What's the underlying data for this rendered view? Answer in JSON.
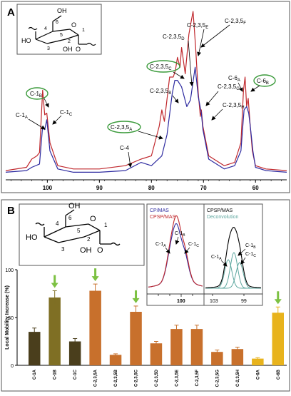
{
  "panel_a": {
    "letter": "A",
    "ring_labels": [
      "OH",
      "6",
      "5",
      "4",
      "HO",
      "3",
      "2",
      "OH",
      "1",
      "O",
      "O"
    ],
    "annotations": [
      {
        "text": "C-2,3,5",
        "sub": "E",
        "circled": false
      },
      {
        "text": "C-2,3,5",
        "sub": "F",
        "circled": false
      },
      {
        "text": "C-2,3,5",
        "sub": "D",
        "circled": false
      },
      {
        "text": "C-2,3,5",
        "sub": "C",
        "circled": true
      },
      {
        "text": "C-2,3,5",
        "sub": "B",
        "circled": false
      },
      {
        "text": "C-2,3,5",
        "sub": "G",
        "circled": false
      },
      {
        "text": "C-2,3,5",
        "sub": "H",
        "circled": false
      },
      {
        "text": "C-2,3,5",
        "sub": "A",
        "circled": true
      },
      {
        "text": "C-1",
        "sub": "B",
        "circled": true
      },
      {
        "text": "C-1",
        "sub": "A",
        "circled": false
      },
      {
        "text": "C-1",
        "sub": "C",
        "circled": false
      },
      {
        "text": "C-4",
        "sub": "",
        "circled": false
      },
      {
        "text": "C-6",
        "sub": "A",
        "circled": false
      },
      {
        "text": "C-6",
        "sub": "B",
        "circled": true
      }
    ]
  },
  "panel_b": {
    "letter": "B",
    "inset1_legend": [
      "CP/MAS",
      "CPSP/MAS"
    ],
    "inset1_peaks": [
      {
        "t": "C-1",
        "s": "A"
      },
      {
        "t": "C-1",
        "s": "B"
      },
      {
        "t": "C-1",
        "s": "C"
      }
    ],
    "inset1_tick": "100",
    "inset2_legend": [
      "CPSP/MAS",
      "Deconvolution"
    ],
    "inset2_peaks": [
      {
        "t": "C-1",
        "s": "A"
      },
      {
        "t": "C-1",
        "s": "B"
      },
      {
        "t": "C-1",
        "s": "C"
      }
    ],
    "inset2_ticks": [
      "103",
      "99"
    ]
  },
  "colors": {
    "red": "#c0282d",
    "blue": "#2e2ba0",
    "green_ellipse": "#3a9a3a",
    "arrow_green": "#7cc142",
    "olive": "#4a3e1c",
    "olive_light": "#7f6f24",
    "orange": "#c8702c",
    "gold": "#e8b31c",
    "teal": "#5fa8a0"
  },
  "chart_data": [
    {
      "type": "line",
      "panel": "A",
      "xlim": [
        108,
        54
      ],
      "xticks": [
        100,
        90,
        80,
        70,
        60
      ],
      "xlabel": "",
      "ylabel": "",
      "series": [
        {
          "name": "",
          "color": "#c0282d",
          "x": [
            108,
            104,
            103,
            102,
            101.5,
            100.9,
            100.5,
            100.1,
            99.5,
            98,
            95,
            90,
            85,
            82,
            80,
            78.5,
            78,
            77.5,
            76.5,
            75.8,
            75.4,
            75,
            74.5,
            74.2,
            73.5,
            72.8,
            72.3,
            72,
            71.5,
            71,
            70.6,
            70.4,
            70.1,
            69,
            66,
            64,
            62.8,
            62.3,
            62,
            61.7,
            61.4,
            61,
            60.6,
            60,
            58,
            54
          ],
          "y": [
            0.03,
            0.05,
            0.1,
            0.12,
            0.14,
            0.52,
            0.37,
            0.38,
            0.2,
            0.06,
            0.04,
            0.04,
            0.06,
            0.1,
            0.12,
            0.3,
            0.4,
            0.33,
            0.6,
            0.6,
            0.64,
            0.72,
            0.66,
            0.78,
            0.62,
            0.86,
            0.95,
            1.0,
            0.78,
            0.5,
            0.36,
            0.4,
            0.3,
            0.12,
            0.06,
            0.08,
            0.2,
            0.52,
            0.6,
            0.42,
            0.47,
            0.3,
            0.15,
            0.06,
            0.04,
            0.03
          ]
        },
        {
          "name": "",
          "color": "#2e2ba0",
          "x": [
            108,
            104,
            103,
            101.5,
            100.9,
            100.5,
            100.1,
            99.5,
            98,
            95,
            90,
            85,
            82,
            80,
            78,
            77,
            76,
            75.5,
            75,
            74.2,
            73.2,
            72.5,
            71.6,
            71,
            70.4,
            70.1,
            69,
            66,
            64,
            62.8,
            62.2,
            61.7,
            61.3,
            61,
            60.5,
            60,
            58,
            54
          ],
          "y": [
            0.02,
            0.03,
            0.05,
            0.07,
            0.3,
            0.28,
            0.34,
            0.15,
            0.04,
            0.02,
            0.02,
            0.03,
            0.08,
            0.06,
            0.12,
            0.25,
            0.5,
            0.58,
            0.58,
            0.54,
            0.42,
            0.46,
            0.66,
            0.48,
            0.38,
            0.28,
            0.1,
            0.04,
            0.06,
            0.15,
            0.4,
            0.42,
            0.38,
            0.3,
            0.15,
            0.05,
            0.03,
            0.02
          ]
        }
      ]
    },
    {
      "type": "bar",
      "panel": "B",
      "ylabel": "Local Mobility Increase (%)",
      "ylim": [
        0,
        100
      ],
      "yticks": [
        0,
        50,
        100
      ],
      "categories": [
        "C-1A",
        "C-1B",
        "C-1C",
        "C-2,3,5A",
        "C-2,3,5B",
        "C-2,3,5C",
        "C-2,3,5D",
        "C-2,3,5E",
        "C-2,3,5F",
        "C-2,3,5G",
        "C-2,3,5H",
        "C-6A",
        "C-6B"
      ],
      "values": [
        35,
        71,
        25,
        78,
        11,
        56,
        23,
        38,
        38,
        14,
        17,
        7,
        55
      ],
      "errors": [
        4,
        7,
        3,
        7,
        1,
        6,
        2,
        4,
        4,
        2,
        2,
        1,
        6
      ],
      "colors": [
        "#4a3e1c",
        "#7f6f24",
        "#4a3e1c",
        "#c8702c",
        "#c8702c",
        "#c8702c",
        "#c8702c",
        "#c8702c",
        "#c8702c",
        "#c8702c",
        "#c8702c",
        "#e8b31c",
        "#e8b31c"
      ],
      "arrows": [
        "C-1B",
        "C-2,3,5A",
        "C-2,3,5C",
        "C-6B"
      ]
    }
  ]
}
